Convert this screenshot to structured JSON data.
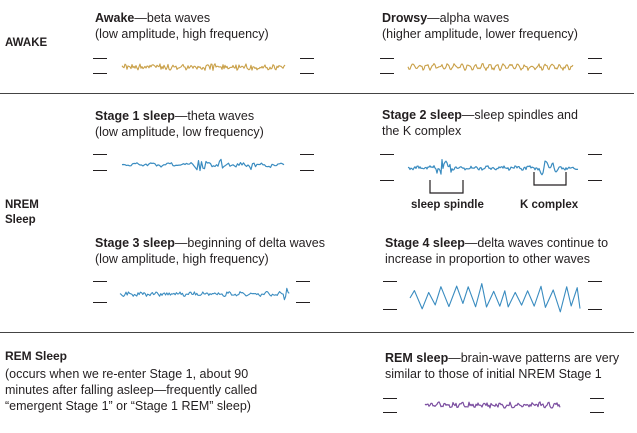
{
  "sections": {
    "awake": "AWAKE",
    "nrem": [
      "NREM",
      "Sleep"
    ],
    "rem": "REM Sleep"
  },
  "stages": {
    "awake": {
      "title": "Awake",
      "rest": "—beta waves",
      "line2": "(low amplitude, high frequency)"
    },
    "drowsy": {
      "title": "Drowsy",
      "rest": "—alpha waves",
      "line2": "(higher amplitude, lower frequency)"
    },
    "stage1": {
      "title": "Stage 1 sleep",
      "rest": "—theta waves",
      "line2": "(low amplitude, low frequency)"
    },
    "stage2": {
      "title": "Stage 2 sleep",
      "rest": "—sleep spindles and",
      "line2": "the K complex"
    },
    "stage3": {
      "title": "Stage 3 sleep",
      "rest": "—beginning of delta waves",
      "line2": "(low amplitude, high frequency)"
    },
    "stage4": {
      "title": "Stage 4 sleep",
      "rest": "—delta waves continue to",
      "line2": "increase in proportion to other waves"
    },
    "rem": {
      "title": "REM sleep",
      "rest": "—brain-wave patterns are very",
      "line2": "similar to those of initial NREM Stage 1"
    }
  },
  "rem_description": [
    "(occurs when we re-enter Stage 1, about 90",
    "minutes after falling asleep—frequently called",
    "“emergent Stage 1” or “Stage 1 REM” sleep)"
  ],
  "annotations": {
    "spindle": "sleep spindle",
    "kcomplex": "K complex"
  },
  "colors": {
    "awake": "#c9a048",
    "nrem": "#3a8cc0",
    "rem": "#7b4ea0",
    "text": "#231f20",
    "divider": "#444444"
  }
}
